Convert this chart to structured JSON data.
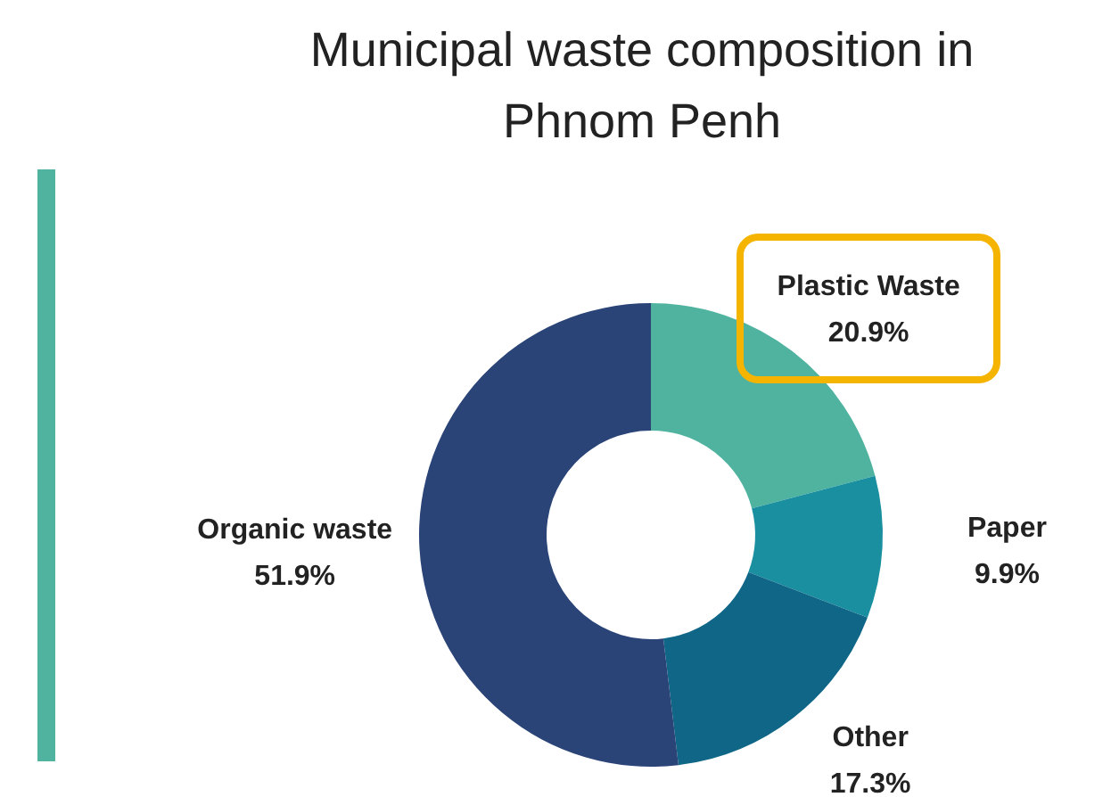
{
  "chart_data": {
    "type": "donut",
    "title": "Municipal waste composition in Phnom Penh",
    "categories": [
      "Plastic Waste",
      "Paper",
      "Other",
      "Organic waste"
    ],
    "values": [
      20.9,
      9.9,
      17.3,
      51.9
    ],
    "colors": [
      "#4fb3a0",
      "#1a8fa0",
      "#0f6687",
      "#2a4478"
    ],
    "value_labels": [
      "20.9%",
      "9.9%",
      "17.3%",
      "51.9%"
    ],
    "legend": false
  }
}
